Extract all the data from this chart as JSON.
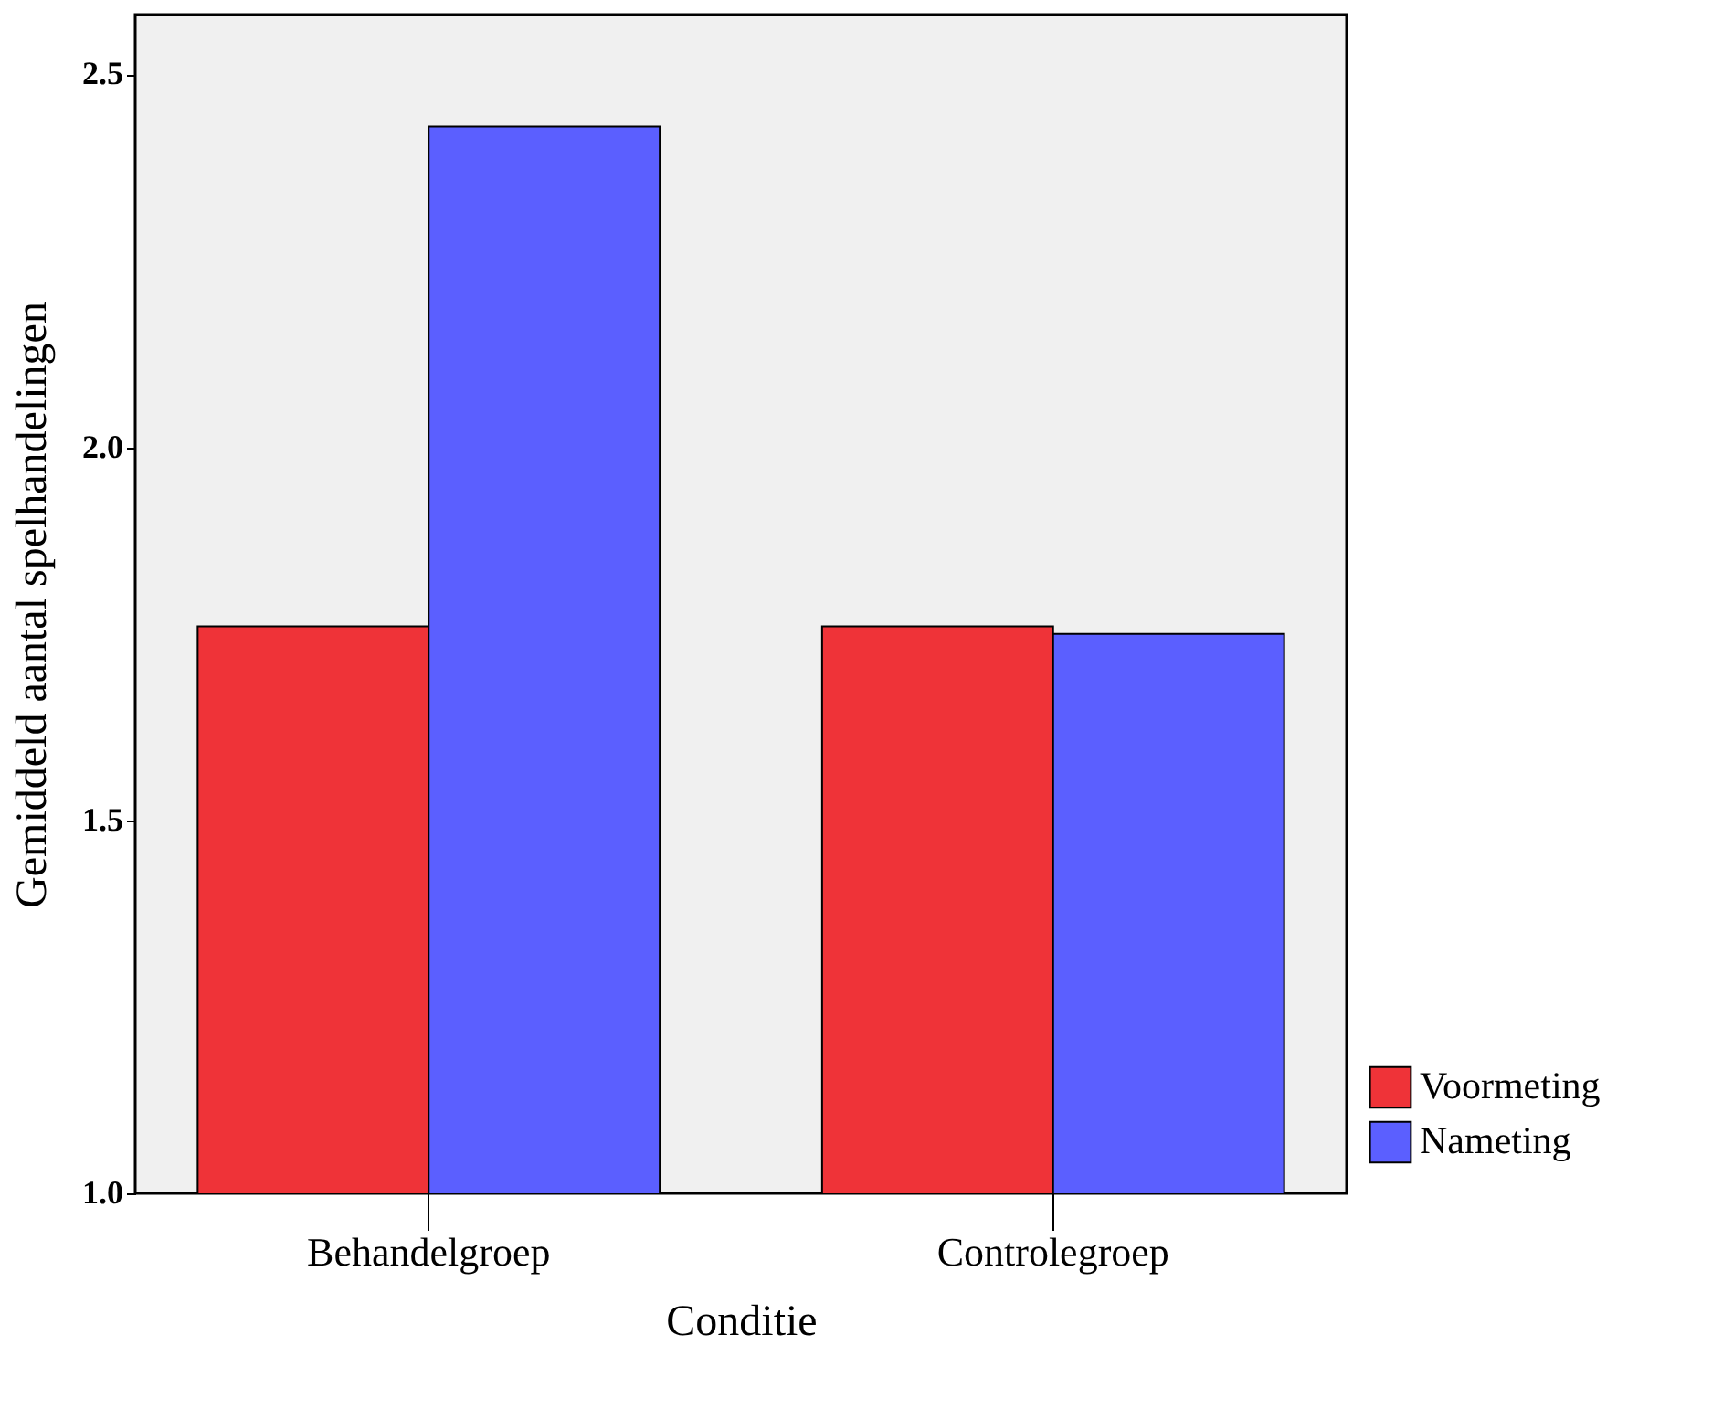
{
  "chart_data": {
    "type": "bar",
    "xlabel": "Conditie",
    "ylabel": "Gemiddeld aantal spelhandelingen",
    "categories": [
      "Behandelgroep",
      "Controlegroep"
    ],
    "series": [
      {
        "name": "Voormeting",
        "color": "#ef3338",
        "values": [
          1.76,
          1.76
        ]
      },
      {
        "name": "Nameting",
        "color": "#5b5fff",
        "values": [
          2.43,
          1.75
        ]
      }
    ],
    "ylim": [
      1.0,
      2.58
    ],
    "yticks": [
      {
        "value": 1,
        "label": "1.0"
      },
      {
        "value": 1.5,
        "label": "1.5"
      },
      {
        "value": 2,
        "label": "2.0"
      },
      {
        "value": 2.5,
        "label": "2.5"
      }
    ],
    "grid": false,
    "legend": "bottom right"
  }
}
